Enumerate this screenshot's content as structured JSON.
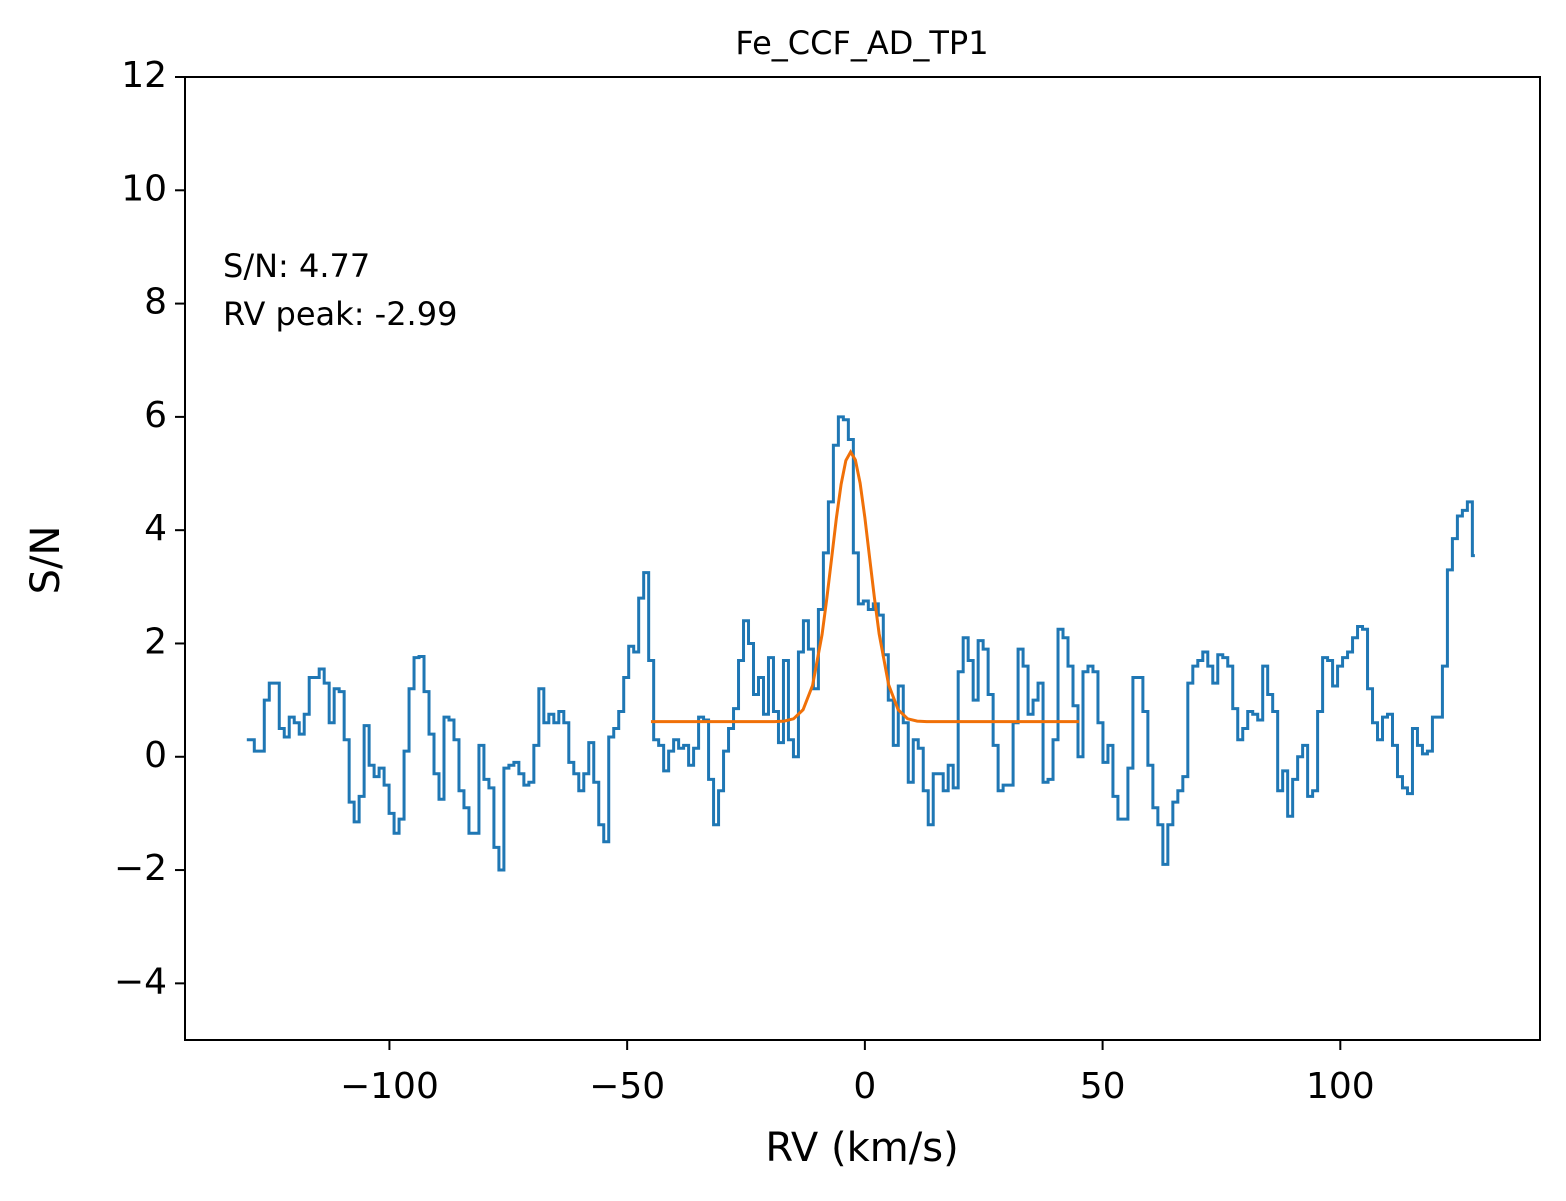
{
  "chart_data": {
    "type": "line",
    "title": "Fe_CCF_AD_TP1",
    "x_label": "RV (km/s)",
    "y_label": "S/N",
    "annotations": [
      "S/N: 4.77",
      "RV peak: -2.99"
    ],
    "xlim": [
      -143,
      142
    ],
    "ylim": [
      -5,
      12
    ],
    "xticks": [
      {
        "value": -100,
        "label": "−100"
      },
      {
        "value": -50,
        "label": "−50"
      },
      0,
      50,
      100
    ],
    "yticks": [
      {
        "value": -4,
        "label": "−4"
      },
      {
        "value": -2,
        "label": "−2"
      },
      0,
      2,
      4,
      6,
      8,
      10,
      12
    ],
    "grid": false,
    "series": [
      {
        "color": "#1f77b4",
        "drawstyle": "steps-mid",
        "x": [
          -130,
          -128.95,
          -127.9,
          -126.85,
          -125.8,
          -124.75,
          -123.7,
          -122.65,
          -121.6,
          -120.55,
          -119.5,
          -118.45,
          -117.4,
          -116.35,
          -115.3,
          -114.25,
          -113.2,
          -112.15,
          -111.1,
          -110.05,
          -109,
          -107.95,
          -106.9,
          -105.85,
          -104.8,
          -103.75,
          -102.7,
          -101.65,
          -100.6,
          -99.55,
          -98.5,
          -97.45,
          -96.4,
          -95.35,
          -94.3,
          -93.25,
          -92.2,
          -91.15,
          -90.1,
          -89.05,
          -88,
          -86.95,
          -85.9,
          -84.85,
          -83.8,
          -82.75,
          -81.7,
          -80.65,
          -79.6,
          -78.55,
          -77.5,
          -76.45,
          -75.4,
          -74.35,
          -73.3,
          -72.25,
          -71.2,
          -70.15,
          -69.1,
          -68.05,
          -67,
          -65.95,
          -64.9,
          -63.85,
          -62.8,
          -61.75,
          -60.7,
          -59.65,
          -58.6,
          -57.55,
          -56.5,
          -55.45,
          -54.4,
          -53.35,
          -52.3,
          -51.25,
          -50.2,
          -49.15,
          -48.1,
          -47.05,
          -46,
          -44.95,
          -43.9,
          -42.85,
          -41.8,
          -40.75,
          -39.7,
          -38.65,
          -37.6,
          -36.55,
          -35.5,
          -34.45,
          -33.4,
          -32.35,
          -31.3,
          -30.25,
          -29.2,
          -28.15,
          -27.1,
          -26.05,
          -25,
          -23.95,
          -22.9,
          -21.85,
          -20.8,
          -19.75,
          -18.7,
          -17.65,
          -16.6,
          -15.55,
          -14.5,
          -13.45,
          -12.4,
          -11.35,
          -10.3,
          -9.25,
          -8.2,
          -7.15,
          -6.1,
          -5.05,
          -4,
          -2.95,
          -1.9,
          -0.85,
          0.2,
          1.25,
          2.3,
          3.35,
          4.4,
          5.45,
          6.5,
          7.55,
          8.6,
          9.65,
          10.7,
          11.75,
          12.8,
          13.85,
          14.9,
          15.95,
          17,
          18.05,
          19.1,
          20.15,
          21.2,
          22.25,
          23.3,
          24.35,
          25.4,
          26.45,
          27.5,
          28.55,
          29.6,
          30.65,
          31.7,
          32.75,
          33.8,
          34.85,
          35.9,
          36.95,
          38,
          39.05,
          40.1,
          41.15,
          42.2,
          43.25,
          44.3,
          45.35,
          46.4,
          47.45,
          48.5,
          49.55,
          50.6,
          51.65,
          52.7,
          53.75,
          54.8,
          55.85,
          56.9,
          57.95,
          59,
          60.05,
          61.1,
          62.15,
          63.2,
          64.25,
          65.3,
          66.35,
          67.4,
          68.45,
          69.5,
          70.55,
          71.6,
          72.65,
          73.7,
          74.75,
          75.8,
          76.85,
          77.9,
          78.95,
          80,
          81.05,
          82.1,
          83.15,
          84.2,
          85.25,
          86.3,
          87.35,
          88.4,
          89.45,
          90.5,
          91.55,
          92.6,
          93.65,
          94.7,
          95.75,
          96.8,
          97.85,
          98.9,
          99.95,
          101,
          102.05,
          103.1,
          104.15,
          105.2,
          106.25,
          107.3,
          108.35,
          109.4,
          110.45,
          111.5,
          112.55,
          113.6,
          114.65,
          115.7,
          116.75,
          117.8,
          118.85,
          119.9,
          120.95,
          122,
          123.05,
          124.1,
          125.15,
          126.2,
          127.25,
          128.3
        ],
        "values": [
          0.3,
          0.3,
          0.1,
          0.1,
          1.0,
          1.3,
          1.3,
          0.5,
          0.35,
          0.7,
          0.6,
          0.4,
          0.75,
          1.4,
          1.4,
          1.55,
          1.3,
          0.6,
          1.2,
          1.15,
          0.3,
          -0.8,
          -1.15,
          -0.7,
          0.55,
          -0.15,
          -0.35,
          -0.2,
          -0.5,
          -1.0,
          -1.35,
          -1.1,
          0.1,
          1.2,
          1.75,
          1.77,
          1.15,
          0.4,
          -0.3,
          -0.75,
          0.7,
          0.65,
          0.3,
          -0.6,
          -0.9,
          -1.35,
          -1.35,
          0.2,
          -0.4,
          -0.55,
          -1.6,
          -2.0,
          -0.2,
          -0.15,
          -0.1,
          -0.3,
          -0.5,
          -0.45,
          0.2,
          1.2,
          0.6,
          0.75,
          0.6,
          0.8,
          0.6,
          -0.1,
          -0.3,
          -0.6,
          -0.3,
          0.25,
          -0.45,
          -1.2,
          -1.5,
          0.35,
          0.5,
          0.8,
          1.4,
          1.95,
          1.85,
          2.8,
          3.25,
          1.7,
          0.3,
          0.2,
          -0.25,
          0.1,
          0.3,
          0.15,
          0.2,
          -0.15,
          0.15,
          0.7,
          0.65,
          -0.4,
          -1.2,
          -0.6,
          0.1,
          0.5,
          0.85,
          1.7,
          2.4,
          2.0,
          1.1,
          1.4,
          0.75,
          1.75,
          0.8,
          0.25,
          1.7,
          0.3,
          0.0,
          1.85,
          2.4,
          1.9,
          1.2,
          2.6,
          3.6,
          4.5,
          5.5,
          6.0,
          5.95,
          5.6,
          3.6,
          2.7,
          2.75,
          2.6,
          2.7,
          2.5,
          1.8,
          1.0,
          0.2,
          1.25,
          0.6,
          -0.45,
          0.3,
          0.15,
          -0.6,
          -1.2,
          -0.3,
          -0.3,
          -0.6,
          -0.15,
          -0.55,
          1.5,
          2.1,
          1.7,
          1.0,
          2.05,
          1.9,
          1.1,
          0.2,
          -0.6,
          -0.5,
          -0.5,
          0.6,
          1.9,
          1.6,
          0.75,
          1.0,
          1.3,
          -0.45,
          -0.4,
          0.3,
          2.25,
          2.1,
          1.6,
          0.9,
          0.0,
          1.5,
          1.6,
          1.5,
          0.6,
          -0.1,
          0.2,
          -0.7,
          -1.1,
          -1.1,
          -0.2,
          1.4,
          1.4,
          0.8,
          -0.15,
          -0.9,
          -1.2,
          -1.9,
          -1.2,
          -0.8,
          -0.6,
          -0.35,
          1.3,
          1.6,
          1.7,
          1.85,
          1.6,
          1.3,
          1.8,
          1.75,
          1.6,
          0.85,
          0.3,
          0.5,
          0.8,
          0.75,
          0.65,
          1.6,
          1.1,
          0.8,
          -0.6,
          -0.25,
          -1.05,
          -0.4,
          0.0,
          0.2,
          -0.7,
          -0.6,
          0.8,
          1.75,
          1.7,
          1.25,
          1.6,
          1.75,
          1.85,
          2.1,
          2.3,
          2.25,
          1.2,
          0.6,
          0.3,
          0.7,
          0.75,
          0.2,
          -0.35,
          -0.55,
          -0.65,
          0.5,
          0.2,
          0.05,
          0.1,
          0.7,
          0.7,
          1.6,
          3.3,
          3.85,
          4.25,
          4.35,
          4.5,
          3.55
        ]
      },
      {
        "color": "#f07008",
        "drawstyle": "default",
        "x": [
          -45,
          -35,
          -25,
          -19,
          -17,
          -15,
          -13,
          -11,
          -9,
          -8,
          -7,
          -6,
          -5,
          -4,
          -3,
          -2,
          -1,
          0,
          1,
          2,
          3,
          5,
          7,
          9,
          11,
          13,
          20,
          30,
          45
        ],
        "values": [
          0.62,
          0.62,
          0.62,
          0.62,
          0.63,
          0.67,
          0.83,
          1.26,
          2.16,
          2.8,
          3.5,
          4.21,
          4.81,
          5.23,
          5.38,
          5.24,
          4.83,
          4.22,
          3.51,
          2.81,
          2.17,
          1.27,
          0.83,
          0.67,
          0.63,
          0.62,
          0.62,
          0.62,
          0.62
        ]
      }
    ]
  }
}
